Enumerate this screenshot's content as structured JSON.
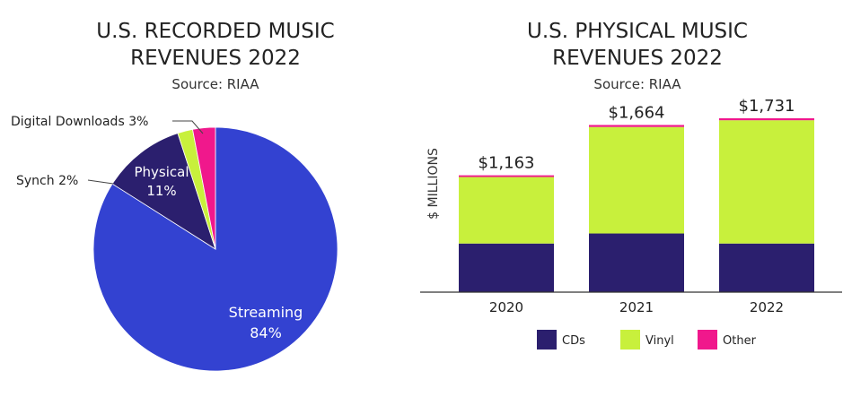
{
  "chart_data": [
    {
      "type": "pie",
      "title_lines": [
        "U.S. RECORDED MUSIC",
        "REVENUES 2022"
      ],
      "subtitle": "Source: RIAA",
      "slices": [
        {
          "label": "Streaming",
          "pct_label": "84%",
          "value": 84,
          "color": "#3342d1"
        },
        {
          "label": "Physical",
          "pct_label": "11%",
          "value": 11,
          "color": "#2b1f6e"
        },
        {
          "label": "Synch 2%",
          "value": 2,
          "color": "#c8f03c"
        },
        {
          "label": "Digital Downloads 3%",
          "value": 3,
          "color": "#f0188c"
        }
      ]
    },
    {
      "type": "bar",
      "stacked": true,
      "title_lines": [
        "U.S. PHYSICAL MUSIC",
        "REVENUES 2022"
      ],
      "subtitle": "Source: RIAA",
      "ylabel": "$ MILLIONS",
      "ylim": [
        0,
        1900
      ],
      "categories": [
        "2020",
        "2021",
        "2022"
      ],
      "totals_labels": [
        "$1,163",
        "$1,664",
        "$1,731"
      ],
      "series": [
        {
          "name": "CDs",
          "color": "#2b1f6e",
          "values": [
            484,
            584,
            484
          ]
        },
        {
          "name": "Vinyl",
          "color": "#c8f03c",
          "values": [
            662,
            1060,
            1227
          ]
        },
        {
          "name": "Other",
          "color": "#f0188c",
          "values": [
            17,
            20,
            20
          ]
        }
      ]
    }
  ]
}
